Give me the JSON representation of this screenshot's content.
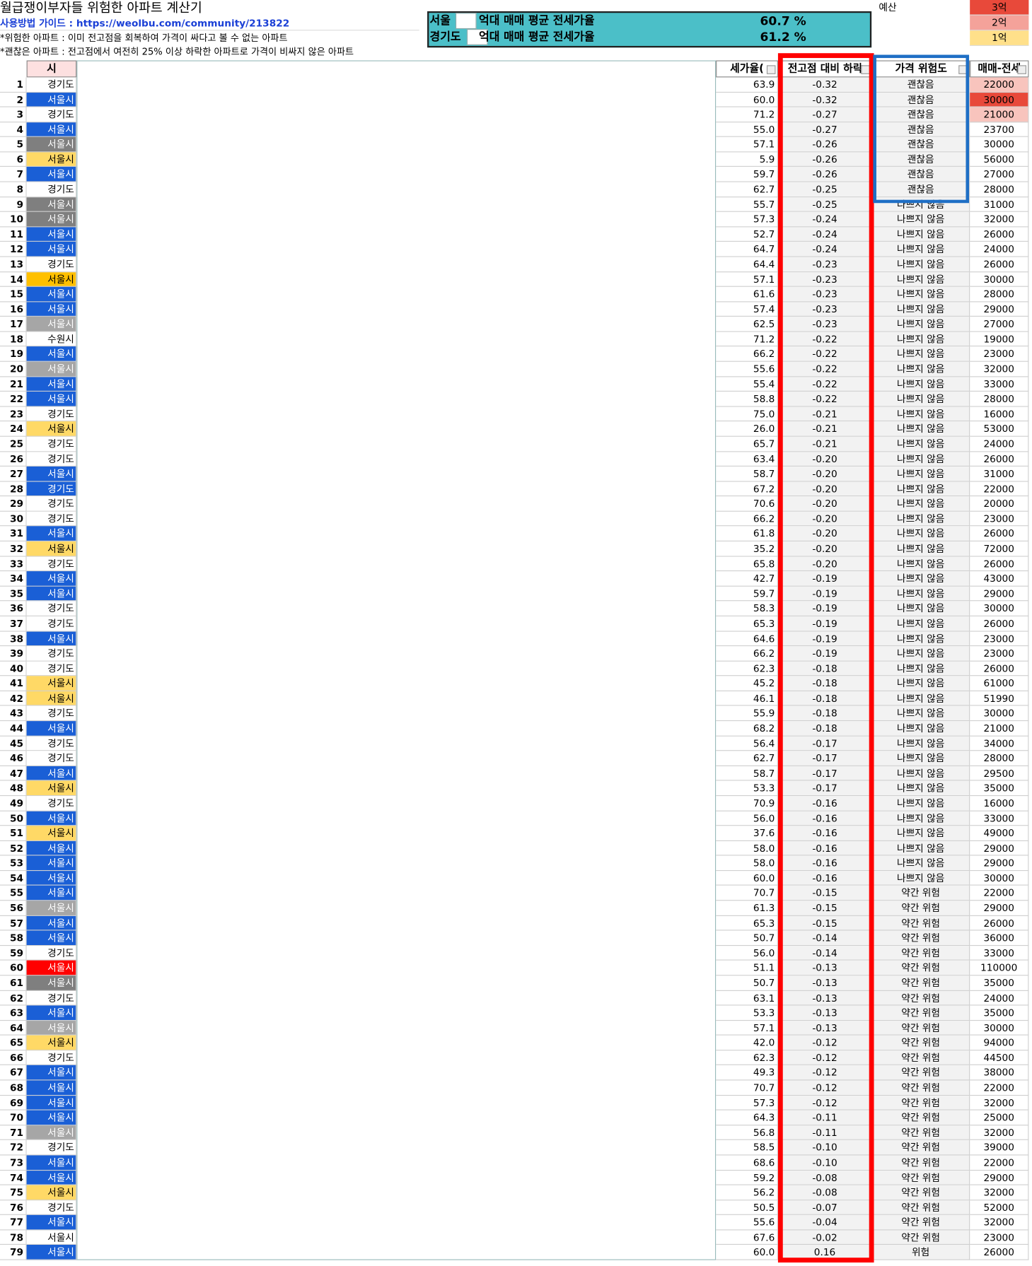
{
  "header": {
    "title": "월급쟁이부자들 위험한 아파트 계산기",
    "guide": "사용방법 가이드 : https://weolbu.com/community/213822",
    "notes": [
      "*위험한 아파트 : 이미 전고점을 회복하여 가격이 싸다고 볼 수 없는 아파트",
      "*괜찮은 아파트 : 전고점에서 여전히 25% 이상 하락한 아파트로 가격이 비싸지 않은 아파트"
    ]
  },
  "summary": [
    {
      "region": "서울",
      "label": "억대 매매 평균 전세가율",
      "value": "60.7 %"
    },
    {
      "region": "경기도",
      "label": "억대 매매 평균 전세가율",
      "value": "61.2 %"
    }
  ],
  "budget": {
    "label": "예산",
    "options": [
      {
        "text": "3억",
        "color": "#e8493a"
      },
      {
        "text": "2억",
        "color": "#f4a29a"
      },
      {
        "text": "1억",
        "color": "#ffe08a"
      }
    ]
  },
  "table": {
    "columns": [
      "시",
      "세가율(",
      "전고점 대비 하락",
      "가격 위험도",
      "매매-전세"
    ],
    "rows": [
      {
        "n": 1,
        "city": "경기도",
        "color": "#ffffff",
        "ratio": "63.9",
        "drop": "-0.32",
        "risk": "괜찮음",
        "gap": "22000",
        "gap_color": "#f8c4bd"
      },
      {
        "n": 2,
        "city": "서울시",
        "color": "#1a5fd6",
        "ratio": "60.0",
        "drop": "-0.32",
        "risk": "괜찮음",
        "gap": "30000",
        "gap_color": "#e8493a"
      },
      {
        "n": 3,
        "city": "경기도",
        "color": "#ffffff",
        "ratio": "71.2",
        "drop": "-0.27",
        "risk": "괜찮음",
        "gap": "21000",
        "gap_color": "#f8c4bd"
      },
      {
        "n": 4,
        "city": "서울시",
        "color": "#1a5fd6",
        "ratio": "55.0",
        "drop": "-0.27",
        "risk": "괜찮음",
        "gap": "23700"
      },
      {
        "n": 5,
        "city": "서울시",
        "color": "#7f7f7f",
        "ratio": "57.1",
        "drop": "-0.26",
        "risk": "괜찮음",
        "gap": "30000"
      },
      {
        "n": 6,
        "city": "서울시",
        "color": "#ffd966",
        "ratio": "5.9",
        "drop": "-0.26",
        "risk": "괜찮음",
        "gap": "56000"
      },
      {
        "n": 7,
        "city": "서울시",
        "color": "#1a5fd6",
        "ratio": "59.7",
        "drop": "-0.26",
        "risk": "괜찮음",
        "gap": "27000"
      },
      {
        "n": 8,
        "city": "경기도",
        "color": "#ffffff",
        "ratio": "62.7",
        "drop": "-0.25",
        "risk": "괜찮음",
        "gap": "28000"
      },
      {
        "n": 9,
        "city": "서울시",
        "color": "#7f7f7f",
        "ratio": "55.7",
        "drop": "-0.25",
        "risk": "나쁘지 않음",
        "gap": "31000"
      },
      {
        "n": 10,
        "city": "서울시",
        "color": "#7f7f7f",
        "ratio": "57.3",
        "drop": "-0.24",
        "risk": "나쁘지 않음",
        "gap": "32000"
      },
      {
        "n": 11,
        "city": "서울시",
        "color": "#1a5fd6",
        "ratio": "52.7",
        "drop": "-0.24",
        "risk": "나쁘지 않음",
        "gap": "26000"
      },
      {
        "n": 12,
        "city": "서울시",
        "color": "#1a5fd6",
        "ratio": "64.7",
        "drop": "-0.24",
        "risk": "나쁘지 않음",
        "gap": "24000"
      },
      {
        "n": 13,
        "city": "경기도",
        "color": "#ffffff",
        "ratio": "64.4",
        "drop": "-0.23",
        "risk": "나쁘지 않음",
        "gap": "26000"
      },
      {
        "n": 14,
        "city": "서울시",
        "color": "#ffc000",
        "ratio": "57.1",
        "drop": "-0.23",
        "risk": "나쁘지 않음",
        "gap": "30000"
      },
      {
        "n": 15,
        "city": "서울시",
        "color": "#1a5fd6",
        "ratio": "61.6",
        "drop": "-0.23",
        "risk": "나쁘지 않음",
        "gap": "28000"
      },
      {
        "n": 16,
        "city": "서울시",
        "color": "#1a5fd6",
        "ratio": "57.4",
        "drop": "-0.23",
        "risk": "나쁘지 않음",
        "gap": "29000"
      },
      {
        "n": 17,
        "city": "서울시",
        "color": "#a6a6a6",
        "ratio": "62.5",
        "drop": "-0.23",
        "risk": "나쁘지 않음",
        "gap": "27000"
      },
      {
        "n": 18,
        "city": "수원시",
        "color": "#ffffff",
        "ratio": "71.2",
        "drop": "-0.22",
        "risk": "나쁘지 않음",
        "gap": "19000"
      },
      {
        "n": 19,
        "city": "서울시",
        "color": "#1a5fd6",
        "ratio": "66.2",
        "drop": "-0.22",
        "risk": "나쁘지 않음",
        "gap": "23000"
      },
      {
        "n": 20,
        "city": "서울시",
        "color": "#a6a6a6",
        "ratio": "55.6",
        "drop": "-0.22",
        "risk": "나쁘지 않음",
        "gap": "32000"
      },
      {
        "n": 21,
        "city": "서울시",
        "color": "#1a5fd6",
        "ratio": "55.4",
        "drop": "-0.22",
        "risk": "나쁘지 않음",
        "gap": "33000"
      },
      {
        "n": 22,
        "city": "서울시",
        "color": "#1a5fd6",
        "ratio": "58.8",
        "drop": "-0.22",
        "risk": "나쁘지 않음",
        "gap": "28000"
      },
      {
        "n": 23,
        "city": "경기도",
        "color": "#ffffff",
        "ratio": "75.0",
        "drop": "-0.21",
        "risk": "나쁘지 않음",
        "gap": "16000"
      },
      {
        "n": 24,
        "city": "서울시",
        "color": "#ffd966",
        "ratio": "26.0",
        "drop": "-0.21",
        "risk": "나쁘지 않음",
        "gap": "53000"
      },
      {
        "n": 25,
        "city": "경기도",
        "color": "#ffffff",
        "ratio": "65.7",
        "drop": "-0.21",
        "risk": "나쁘지 않음",
        "gap": "24000"
      },
      {
        "n": 26,
        "city": "경기도",
        "color": "#ffffff",
        "ratio": "63.4",
        "drop": "-0.20",
        "risk": "나쁘지 않음",
        "gap": "26000"
      },
      {
        "n": 27,
        "city": "서울시",
        "color": "#1a5fd6",
        "ratio": "58.7",
        "drop": "-0.20",
        "risk": "나쁘지 않음",
        "gap": "31000"
      },
      {
        "n": 28,
        "city": "경기도",
        "color": "#1a5fd6",
        "ratio": "67.2",
        "drop": "-0.20",
        "risk": "나쁘지 않음",
        "gap": "22000"
      },
      {
        "n": 29,
        "city": "경기도",
        "color": "#ffffff",
        "ratio": "70.6",
        "drop": "-0.20",
        "risk": "나쁘지 않음",
        "gap": "20000"
      },
      {
        "n": 30,
        "city": "경기도",
        "color": "#ffffff",
        "ratio": "66.2",
        "drop": "-0.20",
        "risk": "나쁘지 않음",
        "gap": "23000"
      },
      {
        "n": 31,
        "city": "서울시",
        "color": "#1a5fd6",
        "ratio": "61.8",
        "drop": "-0.20",
        "risk": "나쁘지 않음",
        "gap": "26000"
      },
      {
        "n": 32,
        "city": "서울시",
        "color": "#ffd966",
        "ratio": "35.2",
        "drop": "-0.20",
        "risk": "나쁘지 않음",
        "gap": "72000"
      },
      {
        "n": 33,
        "city": "경기도",
        "color": "#ffffff",
        "ratio": "65.8",
        "drop": "-0.20",
        "risk": "나쁘지 않음",
        "gap": "26000"
      },
      {
        "n": 34,
        "city": "서울시",
        "color": "#1a5fd6",
        "ratio": "42.7",
        "drop": "-0.19",
        "risk": "나쁘지 않음",
        "gap": "43000"
      },
      {
        "n": 35,
        "city": "서울시",
        "color": "#1a5fd6",
        "ratio": "59.7",
        "drop": "-0.19",
        "risk": "나쁘지 않음",
        "gap": "29000"
      },
      {
        "n": 36,
        "city": "경기도",
        "color": "#ffffff",
        "ratio": "58.3",
        "drop": "-0.19",
        "risk": "나쁘지 않음",
        "gap": "30000"
      },
      {
        "n": 37,
        "city": "경기도",
        "color": "#ffffff",
        "ratio": "65.3",
        "drop": "-0.19",
        "risk": "나쁘지 않음",
        "gap": "26000"
      },
      {
        "n": 38,
        "city": "서울시",
        "color": "#1a5fd6",
        "ratio": "64.6",
        "drop": "-0.19",
        "risk": "나쁘지 않음",
        "gap": "23000"
      },
      {
        "n": 39,
        "city": "경기도",
        "color": "#ffffff",
        "ratio": "66.2",
        "drop": "-0.19",
        "risk": "나쁘지 않음",
        "gap": "23000"
      },
      {
        "n": 40,
        "city": "경기도",
        "color": "#ffffff",
        "ratio": "62.3",
        "drop": "-0.18",
        "risk": "나쁘지 않음",
        "gap": "26000"
      },
      {
        "n": 41,
        "city": "서울시",
        "color": "#ffd966",
        "ratio": "45.2",
        "drop": "-0.18",
        "risk": "나쁘지 않음",
        "gap": "61000"
      },
      {
        "n": 42,
        "city": "서울시",
        "color": "#ffd966",
        "ratio": "46.1",
        "drop": "-0.18",
        "risk": "나쁘지 않음",
        "gap": "51990"
      },
      {
        "n": 43,
        "city": "경기도",
        "color": "#ffffff",
        "ratio": "55.9",
        "drop": "-0.18",
        "risk": "나쁘지 않음",
        "gap": "30000"
      },
      {
        "n": 44,
        "city": "서울시",
        "color": "#1a5fd6",
        "ratio": "68.2",
        "drop": "-0.18",
        "risk": "나쁘지 않음",
        "gap": "21000"
      },
      {
        "n": 45,
        "city": "경기도",
        "color": "#ffffff",
        "ratio": "56.4",
        "drop": "-0.17",
        "risk": "나쁘지 않음",
        "gap": "34000"
      },
      {
        "n": 46,
        "city": "경기도",
        "color": "#ffffff",
        "ratio": "62.7",
        "drop": "-0.17",
        "risk": "나쁘지 않음",
        "gap": "28000"
      },
      {
        "n": 47,
        "city": "서울시",
        "color": "#1a5fd6",
        "ratio": "58.7",
        "drop": "-0.17",
        "risk": "나쁘지 않음",
        "gap": "29500"
      },
      {
        "n": 48,
        "city": "서울시",
        "color": "#ffd966",
        "ratio": "53.3",
        "drop": "-0.17",
        "risk": "나쁘지 않음",
        "gap": "35000"
      },
      {
        "n": 49,
        "city": "경기도",
        "color": "#ffffff",
        "ratio": "70.9",
        "drop": "-0.16",
        "risk": "나쁘지 않음",
        "gap": "16000"
      },
      {
        "n": 50,
        "city": "서울시",
        "color": "#1a5fd6",
        "ratio": "56.0",
        "drop": "-0.16",
        "risk": "나쁘지 않음",
        "gap": "33000"
      },
      {
        "n": 51,
        "city": "서울시",
        "color": "#ffd966",
        "ratio": "37.6",
        "drop": "-0.16",
        "risk": "나쁘지 않음",
        "gap": "49000"
      },
      {
        "n": 52,
        "city": "서울시",
        "color": "#1a5fd6",
        "ratio": "58.0",
        "drop": "-0.16",
        "risk": "나쁘지 않음",
        "gap": "29000"
      },
      {
        "n": 53,
        "city": "서울시",
        "color": "#1a5fd6",
        "ratio": "58.0",
        "drop": "-0.16",
        "risk": "나쁘지 않음",
        "gap": "29000"
      },
      {
        "n": 54,
        "city": "서울시",
        "color": "#1a5fd6",
        "ratio": "60.0",
        "drop": "-0.16",
        "risk": "나쁘지 않음",
        "gap": "30000"
      },
      {
        "n": 55,
        "city": "서울시",
        "color": "#1a5fd6",
        "ratio": "70.7",
        "drop": "-0.15",
        "risk": "약간 위험",
        "gap": "22000"
      },
      {
        "n": 56,
        "city": "서울시",
        "color": "#a6a6a6",
        "ratio": "61.3",
        "drop": "-0.15",
        "risk": "약간 위험",
        "gap": "29000"
      },
      {
        "n": 57,
        "city": "서울시",
        "color": "#1a5fd6",
        "ratio": "65.3",
        "drop": "-0.15",
        "risk": "약간 위험",
        "gap": "26000"
      },
      {
        "n": 58,
        "city": "서울시",
        "color": "#1a5fd6",
        "ratio": "50.7",
        "drop": "-0.14",
        "risk": "약간 위험",
        "gap": "36000"
      },
      {
        "n": 59,
        "city": "경기도",
        "color": "#ffffff",
        "ratio": "56.0",
        "drop": "-0.14",
        "risk": "약간 위험",
        "gap": "33000"
      },
      {
        "n": 60,
        "city": "서울시",
        "color": "#ff0000",
        "ratio": "51.1",
        "drop": "-0.13",
        "risk": "약간 위험",
        "gap": "110000"
      },
      {
        "n": 61,
        "city": "서울시",
        "color": "#7f7f7f",
        "ratio": "50.7",
        "drop": "-0.13",
        "risk": "약간 위험",
        "gap": "35000"
      },
      {
        "n": 62,
        "city": "경기도",
        "color": "#ffffff",
        "ratio": "63.1",
        "drop": "-0.13",
        "risk": "약간 위험",
        "gap": "24000"
      },
      {
        "n": 63,
        "city": "서울시",
        "color": "#1a5fd6",
        "ratio": "53.3",
        "drop": "-0.13",
        "risk": "약간 위험",
        "gap": "35000"
      },
      {
        "n": 64,
        "city": "서울시",
        "color": "#a6a6a6",
        "ratio": "57.1",
        "drop": "-0.13",
        "risk": "약간 위험",
        "gap": "30000"
      },
      {
        "n": 65,
        "city": "서울시",
        "color": "#ffd966",
        "ratio": "42.0",
        "drop": "-0.12",
        "risk": "약간 위험",
        "gap": "94000"
      },
      {
        "n": 66,
        "city": "경기도",
        "color": "#ffffff",
        "ratio": "62.3",
        "drop": "-0.12",
        "risk": "약간 위험",
        "gap": "44500"
      },
      {
        "n": 67,
        "city": "서울시",
        "color": "#1a5fd6",
        "ratio": "49.3",
        "drop": "-0.12",
        "risk": "약간 위험",
        "gap": "38000"
      },
      {
        "n": 68,
        "city": "서울시",
        "color": "#1a5fd6",
        "ratio": "70.7",
        "drop": "-0.12",
        "risk": "약간 위험",
        "gap": "22000"
      },
      {
        "n": 69,
        "city": "서울시",
        "color": "#1a5fd6",
        "ratio": "57.3",
        "drop": "-0.12",
        "risk": "약간 위험",
        "gap": "32000"
      },
      {
        "n": 70,
        "city": "서울시",
        "color": "#1a5fd6",
        "ratio": "64.3",
        "drop": "-0.11",
        "risk": "약간 위험",
        "gap": "25000"
      },
      {
        "n": 71,
        "city": "서울시",
        "color": "#a6a6a6",
        "ratio": "56.8",
        "drop": "-0.11",
        "risk": "약간 위험",
        "gap": "32000"
      },
      {
        "n": 72,
        "city": "경기도",
        "color": "#ffffff",
        "ratio": "58.5",
        "drop": "-0.10",
        "risk": "약간 위험",
        "gap": "39000"
      },
      {
        "n": 73,
        "city": "서울시",
        "color": "#1a5fd6",
        "ratio": "68.6",
        "drop": "-0.10",
        "risk": "약간 위험",
        "gap": "22000"
      },
      {
        "n": 74,
        "city": "서울시",
        "color": "#1a5fd6",
        "ratio": "59.2",
        "drop": "-0.08",
        "risk": "약간 위험",
        "gap": "29000"
      },
      {
        "n": 75,
        "city": "서울시",
        "color": "#ffd966",
        "ratio": "56.2",
        "drop": "-0.08",
        "risk": "약간 위험",
        "gap": "32000"
      },
      {
        "n": 76,
        "city": "경기도",
        "color": "#ffffff",
        "ratio": "50.5",
        "drop": "-0.07",
        "risk": "약간 위험",
        "gap": "52000"
      },
      {
        "n": 77,
        "city": "서울시",
        "color": "#1a5fd6",
        "ratio": "55.6",
        "drop": "-0.04",
        "risk": "약간 위험",
        "gap": "32000"
      },
      {
        "n": 78,
        "city": "서울시",
        "color": "#ffffff",
        "ratio": "67.6",
        "drop": "-0.02",
        "risk": "약간 위험",
        "gap": "23000"
      },
      {
        "n": 79,
        "city": "서울시",
        "color": "#1a5fd6",
        "ratio": "60.0",
        "drop": "0.16",
        "risk": "위험",
        "gap": "26000"
      }
    ]
  }
}
